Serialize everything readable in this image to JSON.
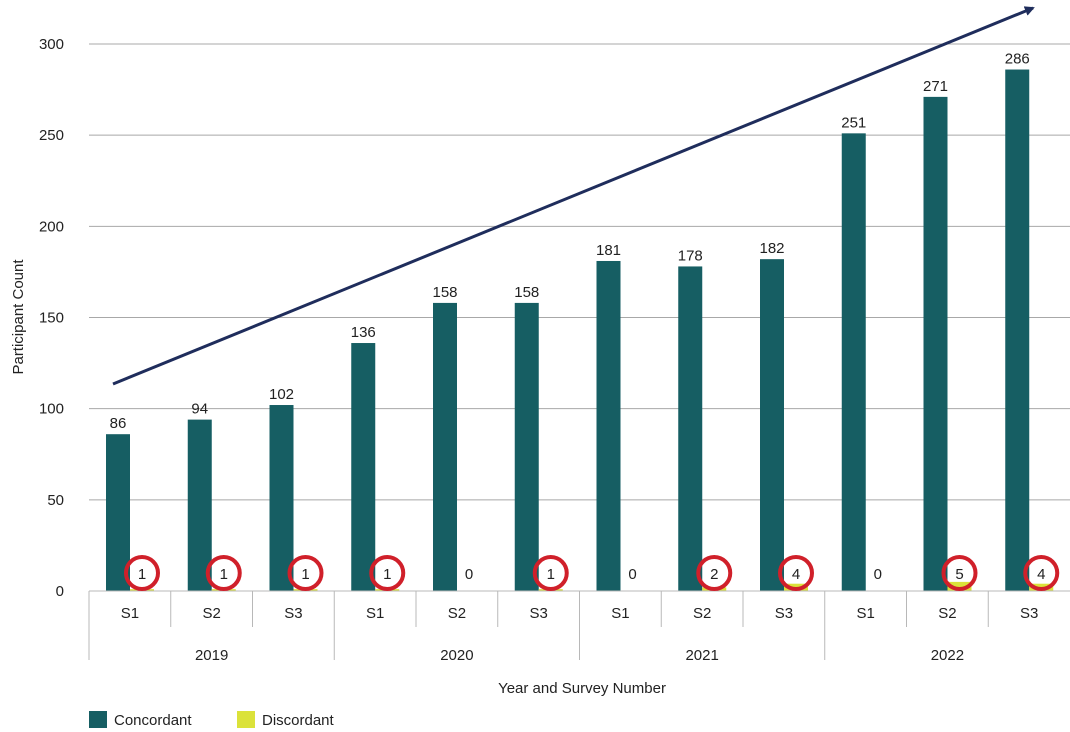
{
  "colors": {
    "concordant": "#165e63",
    "discordant": "#dbe23a",
    "highlight_circle": "#d0202a",
    "trend_arrow": "#1f2d5c",
    "gridline": "#a8a8a8"
  },
  "chart_data": {
    "type": "bar",
    "title": "",
    "xlabel": "Year and Survey Number",
    "ylabel": "Participant Count",
    "ylim": [
      0,
      300
    ],
    "yticks": [
      0,
      50,
      100,
      150,
      200,
      250,
      300
    ],
    "grid": true,
    "legend_position": "bottom-left",
    "groups": [
      {
        "label": "2019",
        "categories": [
          "S1",
          "S2",
          "S3"
        ]
      },
      {
        "label": "2020",
        "categories": [
          "S1",
          "S2",
          "S3"
        ]
      },
      {
        "label": "2021",
        "categories": [
          "S1",
          "S2",
          "S3"
        ]
      },
      {
        "label": "2022",
        "categories": [
          "S1",
          "S2",
          "S3"
        ]
      }
    ],
    "series": [
      {
        "name": "Concordant",
        "values": [
          86,
          94,
          102,
          136,
          158,
          158,
          181,
          178,
          182,
          251,
          271,
          286
        ]
      },
      {
        "name": "Discordant",
        "values": [
          1,
          1,
          1,
          1,
          0,
          1,
          0,
          2,
          4,
          0,
          5,
          4
        ]
      }
    ],
    "annotations": {
      "trend_arrow": "upward",
      "circled_discordant_nonzero": true
    }
  }
}
